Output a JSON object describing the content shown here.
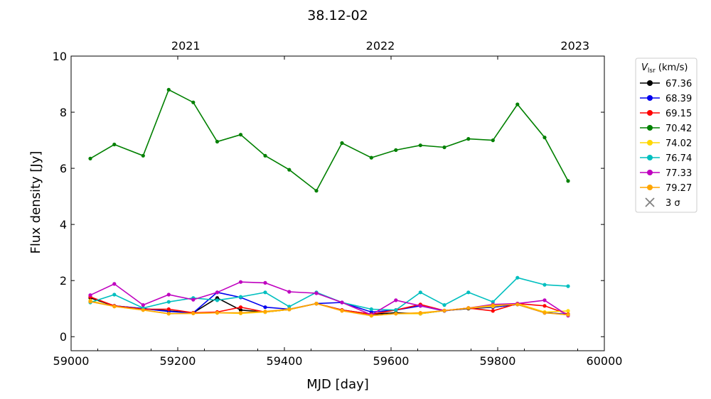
{
  "chart_data": {
    "type": "line",
    "title": "38.12-02",
    "xlabel": "MJD [day]",
    "ylabel": "Flux density [Jy]",
    "xlim": [
      59000,
      60000
    ],
    "ylim": [
      -0.5,
      10
    ],
    "xticks": [
      59000,
      59200,
      59400,
      59600,
      59800,
      60000
    ],
    "yticks": [
      0,
      2,
      4,
      6,
      8,
      10
    ],
    "top_axis": {
      "ticks": [
        {
          "label": "2021",
          "mjd": 59215
        },
        {
          "label": "2022",
          "mjd": 59580
        },
        {
          "label": "2023",
          "mjd": 59945
        }
      ]
    },
    "legend": {
      "title": "V_lsr (km/s)",
      "title_main": "V",
      "title_sub": "lsr",
      "title_rest": " (km/s)",
      "placement": "outside-right-top",
      "sigma_label": "3 σ"
    },
    "x": [
      59036,
      59081,
      59135,
      59183,
      59229,
      59274,
      59318,
      59364,
      59409,
      59460,
      59508,
      59563,
      59609,
      59655,
      59700,
      59745,
      59791,
      59837,
      59888,
      59932
    ],
    "series": [
      {
        "name": "67.36",
        "color": "#000000",
        "values": [
          1.38,
          1.1,
          1.0,
          0.92,
          0.85,
          1.38,
          0.95,
          0.88,
          0.97,
          1.18,
          0.95,
          0.8,
          0.85,
          0.82,
          0.93,
          1.0,
          1.05,
          1.15,
          0.87,
          0.78
        ]
      },
      {
        "name": "68.39",
        "color": "#0000ee",
        "values": [
          1.25,
          1.1,
          1.0,
          0.9,
          0.85,
          1.58,
          1.4,
          1.05,
          0.98,
          1.18,
          1.22,
          0.88,
          0.95,
          1.1,
          0.92,
          1.02,
          1.05,
          1.15,
          0.85,
          0.8
        ]
      },
      {
        "name": "69.15",
        "color": "#ff0000",
        "values": [
          1.42,
          1.1,
          0.98,
          0.98,
          0.85,
          0.88,
          1.05,
          0.88,
          0.97,
          1.18,
          0.95,
          0.8,
          0.95,
          1.15,
          0.93,
          1.02,
          0.92,
          1.18,
          1.1,
          0.8
        ]
      },
      {
        "name": "70.42",
        "color": "#008000",
        "values": [
          6.35,
          6.85,
          6.45,
          8.8,
          8.35,
          6.95,
          7.2,
          6.45,
          5.95,
          5.2,
          6.9,
          6.38,
          6.65,
          6.82,
          6.75,
          7.05,
          7.0,
          8.28,
          7.1,
          5.55
        ]
      },
      {
        "name": "74.02",
        "color": "#ffd700",
        "values": [
          1.28,
          1.08,
          0.95,
          0.82,
          0.83,
          0.85,
          0.83,
          0.88,
          0.97,
          1.18,
          0.93,
          0.75,
          0.82,
          0.82,
          0.93,
          1.02,
          1.08,
          1.18,
          0.88,
          0.92
        ]
      },
      {
        "name": "76.74",
        "color": "#00bfbf",
        "values": [
          1.22,
          1.5,
          1.02,
          1.24,
          1.38,
          1.3,
          1.42,
          1.58,
          1.07,
          1.58,
          1.22,
          0.98,
          0.95,
          1.58,
          1.13,
          1.58,
          1.24,
          2.1,
          1.85,
          1.8
        ]
      },
      {
        "name": "77.33",
        "color": "#bf00bf",
        "values": [
          1.48,
          1.88,
          1.13,
          1.5,
          1.32,
          1.58,
          1.95,
          1.92,
          1.6,
          1.55,
          1.22,
          0.78,
          1.3,
          1.1,
          0.93,
          1.02,
          1.15,
          1.18,
          1.3,
          0.75
        ]
      },
      {
        "name": "79.27",
        "color": "#ffa500",
        "values": [
          1.25,
          1.08,
          0.95,
          0.82,
          0.83,
          0.85,
          0.85,
          0.9,
          0.98,
          1.18,
          0.92,
          0.75,
          0.82,
          0.85,
          0.93,
          1.02,
          1.12,
          1.15,
          0.85,
          0.78
        ]
      }
    ]
  }
}
